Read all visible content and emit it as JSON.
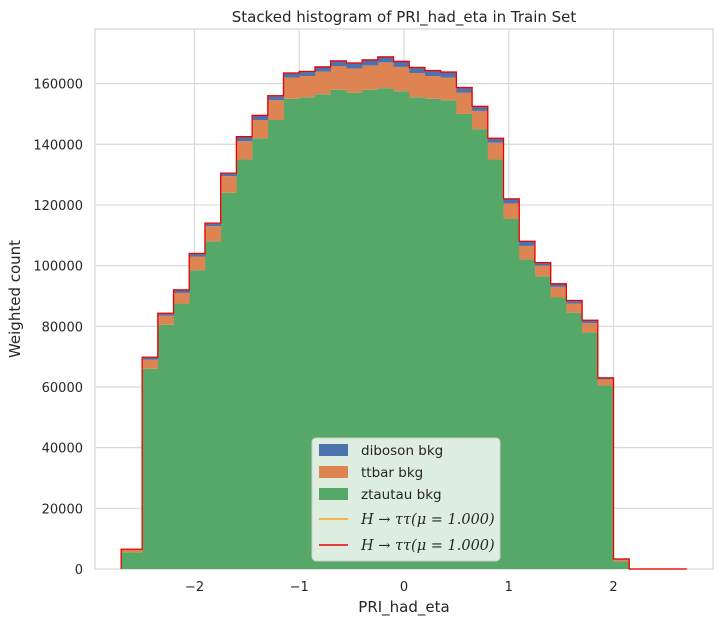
{
  "chart_data": {
    "type": "bar",
    "stacked": true,
    "title": "Stacked histogram of PRI_had_eta in Train Set",
    "xlabel": "PRI_had_eta",
    "ylabel": "Weighted count",
    "xlim": [
      -2.95,
      2.95
    ],
    "ylim": [
      0,
      178000
    ],
    "xticks": [
      -2,
      -1,
      0,
      1,
      2
    ],
    "xtick_labels": [
      "−2",
      "−1",
      "0",
      "1",
      "2"
    ],
    "yticks": [
      0,
      20000,
      40000,
      60000,
      80000,
      100000,
      120000,
      140000,
      160000
    ],
    "ytick_labels": [
      "0",
      "20000",
      "40000",
      "60000",
      "80000",
      "100000",
      "120000",
      "140000",
      "160000"
    ],
    "grid": true,
    "legend_position": "lower center",
    "bin_edges": [
      -2.7,
      -2.5,
      -2.35,
      -2.2,
      -2.05,
      -1.9,
      -1.75,
      -1.6,
      -1.45,
      -1.3,
      -1.15,
      -1.0,
      -0.85,
      -0.7,
      -0.55,
      -0.4,
      -0.25,
      -0.1,
      0.05,
      0.2,
      0.35,
      0.5,
      0.65,
      0.8,
      0.95,
      1.1,
      1.25,
      1.4,
      1.55,
      1.7,
      1.85,
      2.0,
      2.15,
      2.3,
      2.5,
      2.7
    ],
    "series": [
      {
        "name": "ztautau bkg",
        "color": "#55a868",
        "values": [
          5500,
          66000,
          80500,
          87500,
          98500,
          108000,
          124000,
          135000,
          142000,
          148000,
          155000,
          155500,
          156500,
          158000,
          157000,
          158000,
          158500,
          157500,
          155500,
          155000,
          154500,
          150000,
          145000,
          135000,
          115500,
          102000,
          96500,
          89500,
          84500,
          78000,
          60500,
          2500,
          0,
          0,
          0
        ]
      },
      {
        "name": "ttbar bkg",
        "color": "#dd8452",
        "values": [
          800,
          3000,
          3000,
          3500,
          4500,
          5000,
          5500,
          6000,
          6000,
          6500,
          7000,
          7000,
          7500,
          7800,
          8000,
          8000,
          8500,
          8000,
          8000,
          7500,
          7500,
          7000,
          6000,
          5500,
          5000,
          4500,
          3500,
          3500,
          3000,
          3000,
          2000,
          500,
          0,
          0,
          0
        ]
      },
      {
        "name": "diboson bkg",
        "color": "#4c72b0",
        "values": [
          200,
          800,
          800,
          1000,
          1000,
          1000,
          1000,
          1500,
          1500,
          1500,
          1500,
          1500,
          1500,
          1700,
          1800,
          1800,
          1800,
          1800,
          1800,
          1800,
          1800,
          1700,
          1500,
          1500,
          1500,
          1500,
          1000,
          1000,
          1000,
          1000,
          500,
          300,
          0,
          0,
          0
        ]
      }
    ],
    "signal_lines": [
      {
        "label_main": "H → ττ(μ = 1.000)",
        "color": "#ff9f1c"
      },
      {
        "label_main": "H → ττ(μ = 1.000)",
        "color": "#e8000b"
      }
    ]
  }
}
